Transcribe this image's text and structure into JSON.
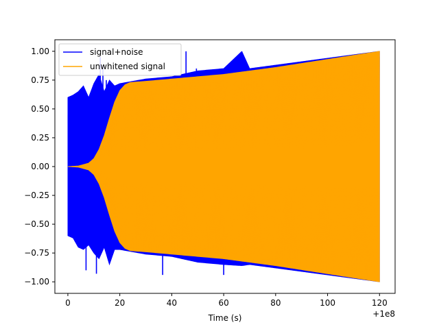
{
  "chart_data": {
    "type": "line",
    "title": "",
    "xlabel": "Time (s)",
    "ylabel": "",
    "x_offset_label": "+1e8",
    "xlim": [
      -5,
      126
    ],
    "ylim": [
      -1.1,
      1.1
    ],
    "xticks": [
      0,
      20,
      40,
      60,
      80,
      100,
      120
    ],
    "xtick_labels": [
      "0",
      "20",
      "40",
      "60",
      "80",
      "100",
      "120"
    ],
    "yticks": [
      -1.0,
      -0.75,
      -0.5,
      -0.25,
      0.0,
      0.25,
      0.5,
      0.75,
      1.0
    ],
    "ytick_labels": [
      "−1.00",
      "−0.75",
      "−0.50",
      "−0.25",
      "0.00",
      "0.25",
      "0.50",
      "0.75",
      "1.00"
    ],
    "legend_position": "top-left",
    "series": [
      {
        "name": "signal+noise",
        "color": "#0000ff",
        "envelope_x": [
          0,
          2,
          4,
          6,
          8,
          10,
          12,
          14,
          16,
          18,
          20,
          25,
          30,
          40,
          50,
          60,
          67,
          70,
          80,
          100,
          120
        ],
        "envelope_max": [
          0.6,
          0.62,
          0.65,
          0.7,
          0.6,
          0.72,
          0.8,
          0.65,
          0.75,
          0.7,
          0.72,
          0.74,
          0.76,
          0.78,
          0.83,
          0.85,
          1.0,
          0.85,
          0.88,
          0.94,
          1.0
        ],
        "envelope_min": [
          -0.6,
          -0.62,
          -0.7,
          -0.72,
          -0.68,
          -0.75,
          -0.8,
          -0.7,
          -0.85,
          -0.72,
          -0.72,
          -0.74,
          -0.76,
          -0.78,
          -0.83,
          -0.85,
          -0.86,
          -0.85,
          -0.88,
          -0.94,
          -1.0
        ]
      },
      {
        "name": "unwhitened signal",
        "color": "#ffa500",
        "envelope_x": [
          0,
          4,
          8,
          10,
          12,
          14,
          16,
          18,
          20,
          22,
          24,
          30,
          40,
          60,
          80,
          100,
          120
        ],
        "envelope_max": [
          0.0,
          0.005,
          0.03,
          0.07,
          0.15,
          0.27,
          0.42,
          0.56,
          0.66,
          0.71,
          0.73,
          0.74,
          0.76,
          0.8,
          0.86,
          0.93,
          1.0
        ],
        "envelope_min": [
          0.0,
          -0.005,
          -0.03,
          -0.07,
          -0.15,
          -0.27,
          -0.42,
          -0.56,
          -0.66,
          -0.71,
          -0.73,
          -0.74,
          -0.76,
          -0.8,
          -0.86,
          -0.93,
          -1.0
        ]
      }
    ],
    "spikes": [
      {
        "series": 0,
        "x": 12.5,
        "y": 0.95
      },
      {
        "series": 0,
        "x": 13.5,
        "y": 0.88
      },
      {
        "series": 0,
        "x": 14.8,
        "y": 0.75
      },
      {
        "series": 0,
        "x": 45.5,
        "y": 1.0
      },
      {
        "series": 0,
        "x": 49.5,
        "y": 0.85
      },
      {
        "series": 0,
        "x": 67.0,
        "y": 1.0
      },
      {
        "series": 0,
        "x": 78.8,
        "y": 0.82
      },
      {
        "series": 0,
        "x": 7.0,
        "y": -0.9
      },
      {
        "series": 0,
        "x": 11.0,
        "y": -0.93
      },
      {
        "series": 0,
        "x": 36.5,
        "y": -0.94
      },
      {
        "series": 0,
        "x": 60.0,
        "y": -0.94
      }
    ]
  }
}
